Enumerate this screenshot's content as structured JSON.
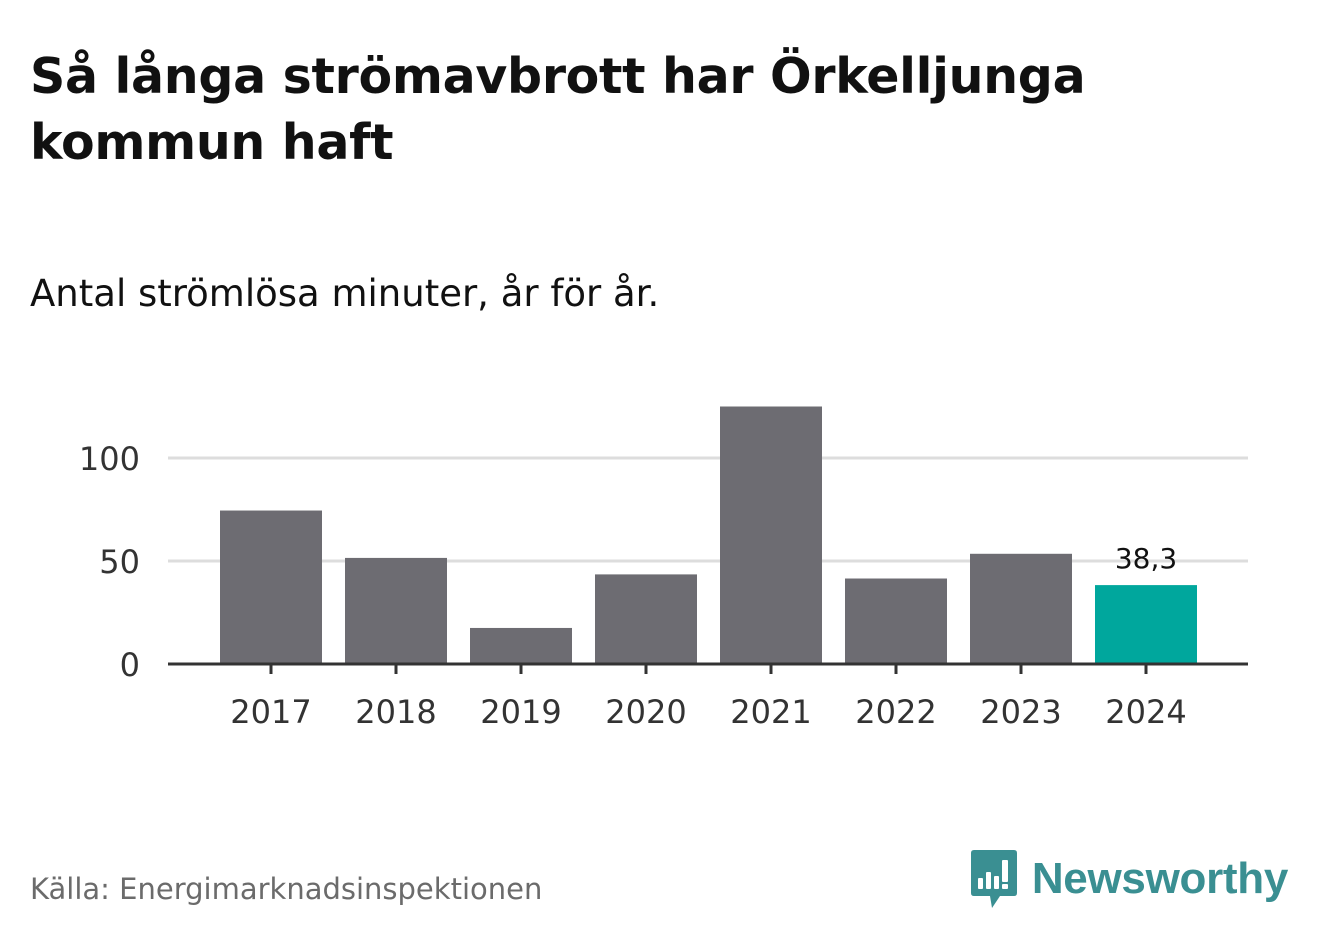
{
  "title": "Så långa strömavbrott har Örkelljunga kommun haft",
  "subtitle": "Antal strömlösa minuter, år för år.",
  "source": "Källa: Energimarknadsinspektionen",
  "brand": {
    "name": "Newsworthy",
    "icon": "newsworthy-logo-icon",
    "color": "#3a8f92"
  },
  "colors": {
    "bar": "#6d6c72",
    "highlight": "#00a79d",
    "grid": "#dddddd",
    "axis": "#333333"
  },
  "chart_data": {
    "type": "bar",
    "categories": [
      "2017",
      "2018",
      "2019",
      "2020",
      "2021",
      "2022",
      "2023",
      "2024"
    ],
    "values": [
      74.5,
      51.5,
      17.5,
      43.5,
      125,
      41.5,
      53.5,
      38.3
    ],
    "highlight_index": 7,
    "data_labels": [
      {
        "index": 7,
        "text": "38,3"
      }
    ],
    "yticks": [
      0,
      50,
      100
    ],
    "ytick_labels": [
      "0",
      "50",
      "100"
    ],
    "ylim": [
      0,
      130
    ],
    "xlabel": "",
    "ylabel": "",
    "grid": true
  }
}
